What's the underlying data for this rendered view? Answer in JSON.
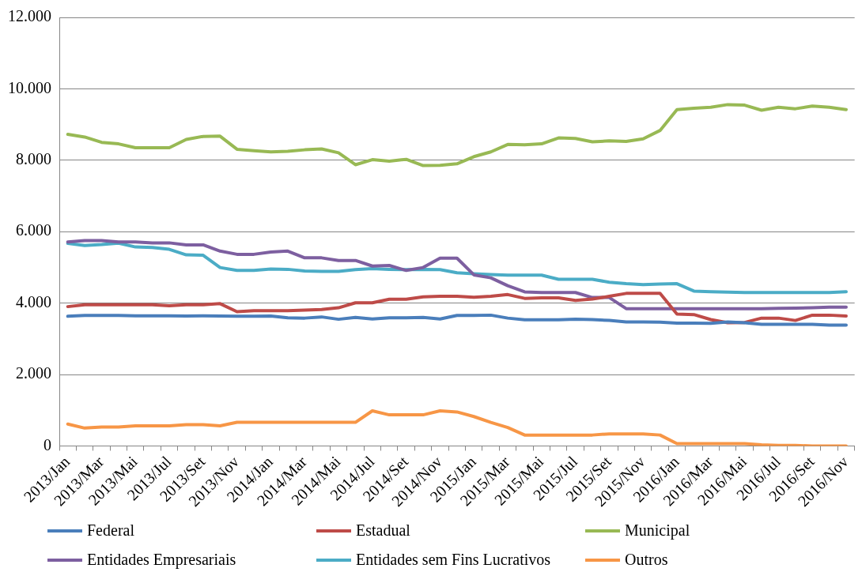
{
  "chart_data": {
    "type": "line",
    "categories": [
      "2013/Jan",
      null,
      "2013/Mar",
      null,
      "2013/Mai",
      null,
      "2013/Jul",
      null,
      "2013/Set",
      null,
      "2013/Nov",
      null,
      "2014/Jan",
      null,
      "2014/Mar",
      null,
      "2014/Mai",
      null,
      "2014/Jul",
      null,
      "2014/Set",
      null,
      "2014/Nov",
      null,
      "2015/Jan",
      null,
      "2015/Mar",
      null,
      "2015/Mai",
      null,
      "2015/Jul",
      null,
      "2015/Set",
      null,
      "2015/Nov",
      null,
      "2016/Jan",
      null,
      "2016/Mar",
      null,
      "2016/Mai",
      null,
      "2016/Jul",
      null,
      "2016/Set",
      null,
      "2016/Nov"
    ],
    "series": [
      {
        "name": "Federal",
        "color": "#4a7ebb",
        "values": [
          3630,
          3654,
          3654,
          3654,
          3646,
          3646,
          3646,
          3638,
          3646,
          3638,
          3630,
          3630,
          3638,
          3589,
          3580,
          3613,
          3547,
          3597,
          3556,
          3589,
          3589,
          3597,
          3556,
          3654,
          3654,
          3663,
          3580,
          3531,
          3531,
          3531,
          3547,
          3539,
          3514,
          3473,
          3473,
          3465,
          3440,
          3440,
          3432,
          3473,
          3449,
          3408,
          3408,
          3408,
          3408,
          3383,
          3383
        ]
      },
      {
        "name": "Estadual",
        "color": "#be4b48",
        "values": [
          3901,
          3951,
          3951,
          3951,
          3951,
          3951,
          3926,
          3951,
          3951,
          3984,
          3761,
          3786,
          3786,
          3786,
          3802,
          3819,
          3868,
          4008,
          4008,
          4107,
          4107,
          4173,
          4189,
          4189,
          4165,
          4189,
          4239,
          4132,
          4148,
          4148,
          4074,
          4115,
          4189,
          4272,
          4272,
          4272,
          3695,
          3679,
          3539,
          3449,
          3457,
          3580,
          3580,
          3514,
          3663,
          3663,
          3638
        ]
      },
      {
        "name": "Municipal",
        "color": "#98b954",
        "values": [
          8725,
          8650,
          8500,
          8458,
          8350,
          8350,
          8350,
          8583,
          8667,
          8675,
          8308,
          8267,
          8233,
          8250,
          8292,
          8317,
          8208,
          7875,
          8017,
          7975,
          8025,
          7850,
          7858,
          7900,
          8100,
          8233,
          8442,
          8433,
          8458,
          8625,
          8608,
          8517,
          8542,
          8525,
          8600,
          8833,
          9417,
          9458,
          9483,
          9558,
          9542,
          9400,
          9483,
          9442,
          9517,
          9483,
          9417
        ]
      },
      {
        "name": "Entidades Empresariais",
        "color": "#7d5fa0",
        "values": [
          5712,
          5753,
          5753,
          5712,
          5712,
          5687,
          5687,
          5630,
          5630,
          5457,
          5366,
          5366,
          5432,
          5457,
          5267,
          5267,
          5193,
          5193,
          5037,
          5053,
          4914,
          4996,
          5259,
          5259,
          4790,
          4708,
          4486,
          4313,
          4296,
          4296,
          4296,
          4156,
          4156,
          3844,
          3844,
          3844,
          3844,
          3844,
          3844,
          3844,
          3844,
          3844,
          3852,
          3860,
          3868,
          3885,
          3885
        ]
      },
      {
        "name": "Entidades sem Fins Lucrativos",
        "color": "#4bacc6",
        "values": [
          5671,
          5613,
          5638,
          5679,
          5572,
          5555,
          5506,
          5350,
          5341,
          4996,
          4914,
          4914,
          4955,
          4946,
          4897,
          4889,
          4889,
          4938,
          4963,
          4946,
          4938,
          4946,
          4938,
          4848,
          4823,
          4798,
          4782,
          4782,
          4782,
          4667,
          4667,
          4667,
          4584,
          4543,
          4518,
          4535,
          4543,
          4337,
          4321,
          4305,
          4296,
          4296,
          4296,
          4296,
          4296,
          4296,
          4321
        ]
      },
      {
        "name": "Outros",
        "color": "#f79646",
        "values": [
          613,
          500,
          532,
          532,
          565,
          565,
          565,
          597,
          597,
          565,
          661,
          661,
          661,
          661,
          661,
          661,
          661,
          661,
          984,
          871,
          871,
          871,
          984,
          952,
          823,
          661,
          516,
          306,
          306,
          306,
          306,
          306,
          339,
          339,
          339,
          306,
          65,
          65,
          65,
          65,
          65,
          32,
          16,
          16,
          0,
          0,
          0
        ]
      }
    ],
    "ylim": [
      0,
      12000
    ],
    "yticks": [
      {
        "value": 0,
        "label": "0"
      },
      {
        "value": 2000,
        "label": "2.000"
      },
      {
        "value": 4000,
        "label": "4.000"
      },
      {
        "value": 6000,
        "label": "6.000"
      },
      {
        "value": 8000,
        "label": "8.000"
      },
      {
        "value": 10000,
        "label": "10.000"
      },
      {
        "value": 12000,
        "label": "12.000"
      }
    ],
    "grid": "y",
    "legend": "bottom",
    "marker": "none",
    "line_style": "solid"
  }
}
